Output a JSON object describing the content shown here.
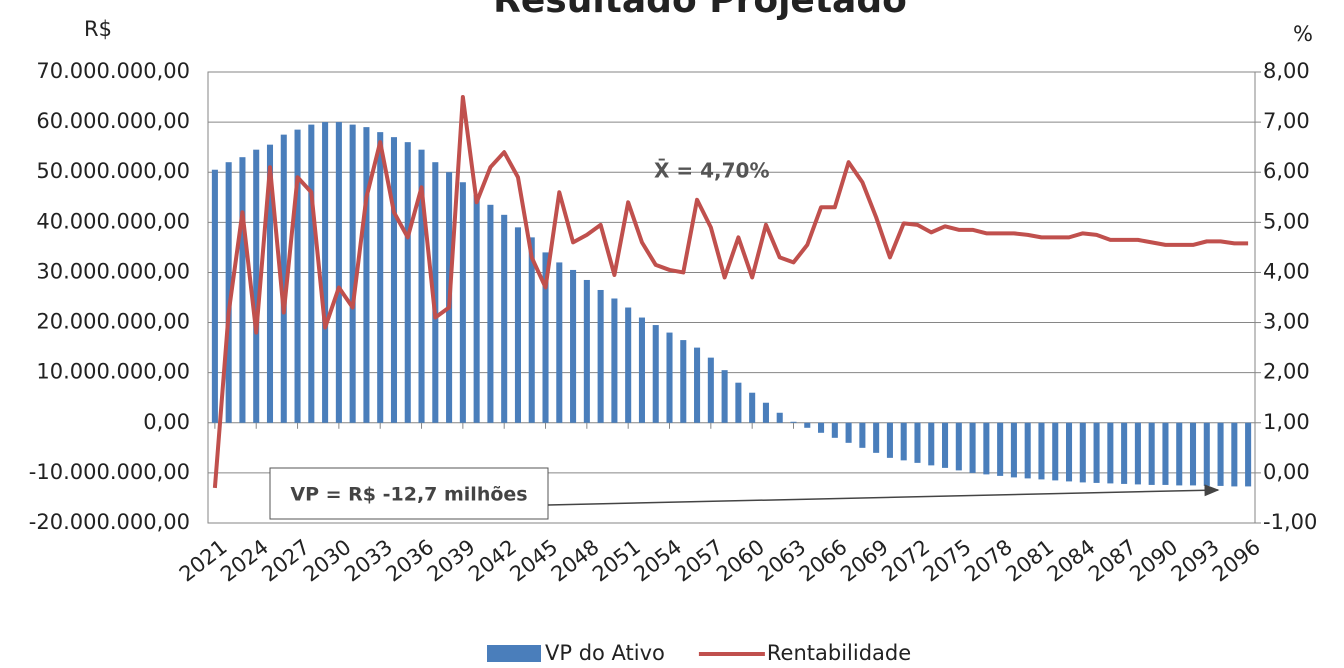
{
  "chart_data": {
    "type": "combo",
    "title": "Resultado Projetado",
    "y_label": "R$",
    "y2_label": "%",
    "x": [
      2021,
      2022,
      2023,
      2024,
      2025,
      2026,
      2027,
      2028,
      2029,
      2030,
      2031,
      2032,
      2033,
      2034,
      2035,
      2036,
      2037,
      2038,
      2039,
      2040,
      2041,
      2042,
      2043,
      2044,
      2045,
      2046,
      2047,
      2048,
      2049,
      2050,
      2051,
      2052,
      2053,
      2054,
      2055,
      2056,
      2057,
      2058,
      2059,
      2060,
      2061,
      2062,
      2063,
      2064,
      2065,
      2066,
      2067,
      2068,
      2069,
      2070,
      2071,
      2072,
      2073,
      2074,
      2075,
      2076,
      2077,
      2078,
      2079,
      2080,
      2081,
      2082,
      2083,
      2084,
      2085,
      2086,
      2087,
      2088,
      2089,
      2090,
      2091,
      2092,
      2093,
      2094,
      2095,
      2096
    ],
    "xlim": [
      2020.5,
      2096.5
    ],
    "xticks": [
      2021,
      2024,
      2027,
      2030,
      2033,
      2036,
      2039,
      2042,
      2045,
      2048,
      2051,
      2054,
      2057,
      2060,
      2063,
      2066,
      2069,
      2072,
      2075,
      2078,
      2081,
      2084,
      2087,
      2090,
      2093,
      2096
    ],
    "series": [
      {
        "name": "VP do Ativo",
        "type": "bar",
        "color": "#4a7ebb",
        "values": [
          50500000,
          52000000,
          53000000,
          54500000,
          55500000,
          57500000,
          58500000,
          59500000,
          60000000,
          60000000,
          59500000,
          59000000,
          58000000,
          57000000,
          56000000,
          54500000,
          52000000,
          50000000,
          48000000,
          45500000,
          43500000,
          41500000,
          39000000,
          37000000,
          34000000,
          32000000,
          30500000,
          28500000,
          26500000,
          24800000,
          23000000,
          21000000,
          19500000,
          18000000,
          16500000,
          15000000,
          13000000,
          10500000,
          8000000,
          6000000,
          4000000,
          2000000,
          200000,
          -1000000,
          -2000000,
          -3000000,
          -4000000,
          -5000000,
          -6000000,
          -7000000,
          -7500000,
          -8000000,
          -8500000,
          -9000000,
          -9500000,
          -10000000,
          -10300000,
          -10600000,
          -10900000,
          -11100000,
          -11300000,
          -11500000,
          -11700000,
          -11900000,
          -12000000,
          -12100000,
          -12200000,
          -12300000,
          -12400000,
          -12400000,
          -12500000,
          -12500000,
          -12600000,
          -12600000,
          -12700000,
          -12700000
        ]
      },
      {
        "name": "Rentabilidade",
        "type": "line",
        "axis": "y2",
        "color": "#c0504d",
        "values": [
          -0.3,
          3.2,
          5.2,
          2.8,
          6.1,
          3.2,
          5.9,
          5.6,
          2.9,
          3.7,
          3.3,
          5.5,
          6.6,
          5.2,
          4.7,
          5.7,
          3.1,
          3.3,
          7.5,
          5.4,
          6.1,
          6.4,
          5.9,
          4.3,
          3.7,
          5.6,
          4.6,
          4.75,
          4.95,
          3.95,
          5.4,
          4.6,
          4.15,
          4.05,
          4.0,
          5.45,
          4.9,
          3.9,
          4.7,
          3.9,
          4.95,
          4.3,
          4.2,
          4.55,
          5.3,
          5.3,
          6.2,
          5.8,
          5.1,
          4.3,
          4.98,
          4.95,
          4.8,
          4.92,
          4.85,
          4.85,
          4.78,
          4.78,
          4.78,
          4.75,
          4.7,
          4.7,
          4.7,
          4.78,
          4.75,
          4.65,
          4.65,
          4.65,
          4.6,
          4.55,
          4.55,
          4.55,
          4.62,
          4.62,
          4.58,
          4.58
        ]
      }
    ],
    "ylim": [
      -20000000,
      70000000
    ],
    "yticks": [
      {
        "value": -20000000,
        "label": "-20.000.000,00"
      },
      {
        "value": -10000000,
        "label": "-10.000.000,00"
      },
      {
        "value": 0,
        "label": "0,00"
      },
      {
        "value": 10000000,
        "label": "10.000.000,00"
      },
      {
        "value": 20000000,
        "label": "20.000.000,00"
      },
      {
        "value": 30000000,
        "label": "30.000.000,00"
      },
      {
        "value": 40000000,
        "label": "40.000.000,00"
      },
      {
        "value": 50000000,
        "label": "50.000.000,00"
      },
      {
        "value": 60000000,
        "label": "60.000.000,00"
      },
      {
        "value": 70000000,
        "label": "70.000.000,00"
      }
    ],
    "y2lim": [
      -1,
      8
    ],
    "y2ticks": [
      {
        "value": -1,
        "label": "-1,00"
      },
      {
        "value": 0,
        "label": "0,00"
      },
      {
        "value": 1,
        "label": "1,00"
      },
      {
        "value": 2,
        "label": "2,00"
      },
      {
        "value": 3,
        "label": "3,00"
      },
      {
        "value": 4,
        "label": "4,00"
      },
      {
        "value": 5,
        "label": "5,00"
      },
      {
        "value": 6,
        "label": "6,00"
      },
      {
        "value": 7,
        "label": "7,00"
      },
      {
        "value": 8,
        "label": "8,00"
      }
    ],
    "grid": true,
    "legend": "bottom",
    "annotations": [
      {
        "text": "X̄ = 4,70%"
      },
      {
        "text": "VP = R$ -12,7 milhões"
      }
    ]
  }
}
